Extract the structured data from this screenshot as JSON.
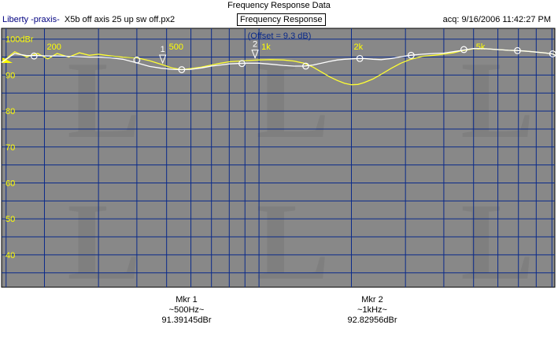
{
  "window": {
    "title": "Frequency Response Data",
    "file_prefix": "Liberty -praxis-",
    "file_name": "X5b off axis 25 up sw off.px2",
    "view_label": "Frequency Response",
    "acquired": "acq: 9/16/2006 11:42:27 PM"
  },
  "chart_data": {
    "type": "line",
    "title": "",
    "offset_label": "(Offset = 9.3 dB)",
    "xscale": "log",
    "xlim": [
      145,
      9200
    ],
    "ylim": [
      31,
      103
    ],
    "x_tick_labels": [
      {
        "value": 200,
        "label": "200"
      },
      {
        "value": 500,
        "label": "500"
      },
      {
        "value": 1000,
        "label": "1k"
      },
      {
        "value": 2000,
        "label": "2k"
      },
      {
        "value": 5000,
        "label": "5k"
      }
    ],
    "x_gridlines": [
      150,
      200,
      300,
      400,
      500,
      600,
      700,
      800,
      900,
      1000,
      2000,
      3000,
      4000,
      5000,
      6000,
      7000,
      8000,
      9000
    ],
    "y_tick_labels": [
      {
        "value": 100,
        "label": "100dBr"
      },
      {
        "value": 90,
        "label": "90"
      },
      {
        "value": 80,
        "label": "80"
      },
      {
        "value": 70,
        "label": "70"
      },
      {
        "value": 60,
        "label": "60"
      },
      {
        "value": 50,
        "label": "50"
      },
      {
        "value": 40,
        "label": "40"
      }
    ],
    "y_gridlines": [
      100,
      95,
      90,
      85,
      80,
      75,
      70,
      65,
      60,
      55,
      50,
      45,
      40,
      35
    ],
    "grid": true,
    "colors": {
      "background": "#888888",
      "grid": "#0a2a8a",
      "axis_labels": "#ffff00",
      "offset_label": "#0a2a8a",
      "marker": "#ffffff",
      "watermark": "#7a7a7a"
    },
    "series": [
      {
        "color": "#ffff33",
        "x": [
          145,
          160,
          175,
          190,
          205,
          220,
          240,
          260,
          280,
          300,
          330,
          360,
          400,
          440,
          480,
          520,
          560,
          600,
          650,
          700,
          750,
          800,
          900,
          1000,
          1100,
          1200,
          1300,
          1400,
          1500,
          1600,
          1700,
          1800,
          1900,
          2000,
          2100,
          2200,
          2350,
          2500,
          2700,
          2900,
          3100,
          3400,
          3700,
          4000,
          4300,
          4600,
          5000,
          5500,
          6000,
          6500,
          7000,
          7500,
          8000,
          8500,
          9000,
          9200
        ],
        "y": [
          93.5,
          96.5,
          95,
          96,
          94.5,
          96,
          95,
          96.2,
          95.5,
          95.8,
          95.3,
          95,
          94.8,
          94,
          93,
          92,
          91.5,
          91.8,
          92.2,
          92.8,
          93.3,
          93.7,
          94,
          94.2,
          94.3,
          94.2,
          93.9,
          93.3,
          92.2,
          90.8,
          89.5,
          88.5,
          87.7,
          87.3,
          87.4,
          87.9,
          88.9,
          90.2,
          91.9,
          93.3,
          94.3,
          95.2,
          95.5,
          95.8,
          96.2,
          96.8,
          97.3,
          97.3,
          97.1,
          96.9,
          96.8,
          96.6,
          96.4,
          96.2,
          95.9,
          95.6
        ]
      },
      {
        "color": "#ffffff",
        "x": [
          145,
          160,
          175,
          190,
          205,
          220,
          240,
          260,
          280,
          300,
          330,
          360,
          400,
          440,
          480,
          520,
          560,
          600,
          650,
          700,
          750,
          800,
          900,
          1000,
          1100,
          1200,
          1300,
          1400,
          1500,
          1600,
          1700,
          1800,
          1900,
          2000,
          2100,
          2200,
          2350,
          2500,
          2700,
          2900,
          3100,
          3400,
          3700,
          4000,
          4300,
          4600,
          5000,
          5500,
          6000,
          6500,
          7000,
          7500,
          8000,
          8500,
          9000,
          9200
        ],
        "y": [
          93.5,
          96,
          95.4,
          95.4,
          95.3,
          95.3,
          95.2,
          95.1,
          95,
          95,
          94.8,
          94.4,
          93.4,
          92.4,
          91.9,
          91.6,
          91.5,
          91.6,
          92,
          92.5,
          92.8,
          93.1,
          93.3,
          93.3,
          93,
          92.7,
          92.5,
          92.5,
          92.8,
          93.3,
          93.8,
          94.2,
          94.4,
          94.5,
          94.6,
          94.6,
          94.4,
          94.3,
          94.6,
          95.1,
          95.5,
          95.8,
          96,
          96.1,
          96.5,
          96.9,
          97.4,
          97.3,
          97.1,
          96.9,
          96.8,
          96.6,
          96.4,
          96.2,
          95.9,
          95.6
        ]
      }
    ],
    "markers": [
      {
        "label": "1",
        "x": 500,
        "y": 91.4
      },
      {
        "label": "2",
        "x": 1000,
        "y": 92.8
      }
    ],
    "circle_marks": [
      {
        "x": 185,
        "y": 95.3
      },
      {
        "x": 400,
        "y": 94.2
      },
      {
        "x": 560,
        "y": 91.5
      },
      {
        "x": 880,
        "y": 93.2
      },
      {
        "x": 1420,
        "y": 92.5
      },
      {
        "x": 2130,
        "y": 94.6
      },
      {
        "x": 3130,
        "y": 95.5
      },
      {
        "x": 4650,
        "y": 97.1
      },
      {
        "x": 6950,
        "y": 96.8
      },
      {
        "x": 9050,
        "y": 95.9
      }
    ],
    "watermarks": [
      "L",
      "L",
      "L",
      "L",
      "L",
      "L"
    ]
  },
  "marker_readouts": [
    {
      "name": "Mkr 1",
      "freq": "~500Hz~",
      "level": "91.39145dBr"
    },
    {
      "name": "Mkr 2",
      "freq": "~1kHz~",
      "level": "92.82956dBr"
    }
  ]
}
